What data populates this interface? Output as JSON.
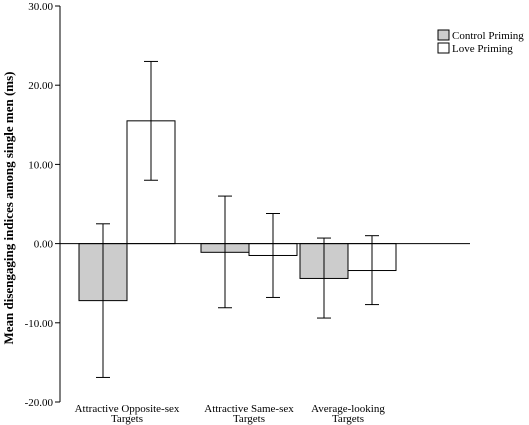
{
  "chart_data": {
    "type": "bar",
    "ylabel": "Mean disengaging indices among single men (ms)",
    "xlabel": "",
    "title": "",
    "ylim": [
      -20,
      30
    ],
    "yticks": [
      30,
      20,
      10,
      0,
      -10,
      -20
    ],
    "ytick_labels": [
      "30.00",
      "20.00",
      "10.00",
      "0.00",
      "-10.00",
      "-20.00"
    ],
    "categories": [
      [
        "Attractive Opposite-sex",
        "Targets"
      ],
      [
        "Attractive Same-sex",
        "Targets"
      ],
      [
        "Average-looking",
        "Targets"
      ]
    ],
    "series": [
      {
        "name": "Control Priming",
        "color": "#cccccc",
        "values": [
          -7.2,
          -1.1,
          -4.4
        ],
        "err_low": [
          -16.9,
          -8.1,
          -9.4
        ],
        "err_high": [
          2.5,
          6.0,
          0.7
        ]
      },
      {
        "name": "Love Priming",
        "color": "#ffffff",
        "values": [
          15.5,
          -1.5,
          -3.4
        ],
        "err_low": [
          8.0,
          -6.8,
          -7.7
        ],
        "err_high": [
          23.0,
          3.8,
          1.0
        ]
      }
    ],
    "legend_position": "top-right",
    "grid": false
  }
}
